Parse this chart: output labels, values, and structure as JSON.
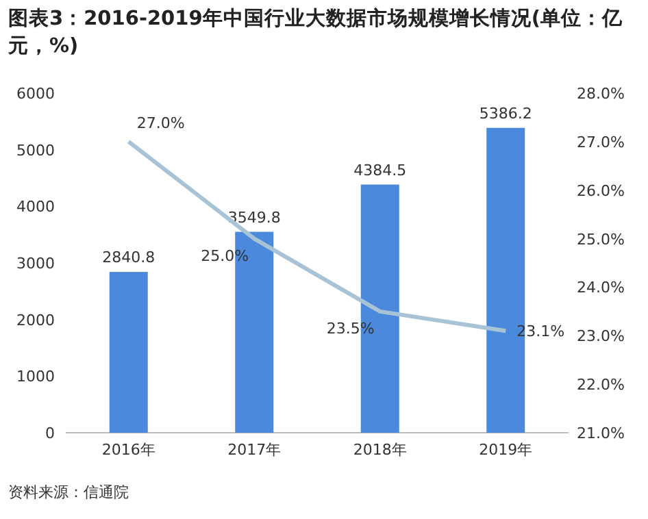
{
  "chart_data": {
    "type": "bar",
    "title": "图表3：2016-2019年中国行业大数据市场规模增长情况(单位：亿元，%)",
    "categories": [
      "2016年",
      "2017年",
      "2018年",
      "2019年"
    ],
    "series": [
      {
        "color": "#4a89dc",
        "values": [
          2840.8,
          3549.8,
          4384.5,
          5386.2
        ],
        "value_labels": [
          "2840.8",
          "3549.8",
          "4384.5",
          "5386.2"
        ]
      },
      {
        "type": "line",
        "axis": "y2",
        "color": "#a9c3d6",
        "values": [
          27.0,
          25.0,
          23.5,
          23.1
        ],
        "value_labels": [
          "27.0%",
          "25.0%",
          "23.5%",
          "23.1%"
        ]
      }
    ],
    "ylim": [
      0,
      6000
    ],
    "yticks": [
      0,
      1000,
      2000,
      3000,
      4000,
      5000,
      6000
    ],
    "y2lim": [
      21,
      28
    ],
    "y2ticks": [
      {
        "value": 21,
        "label": "21.0%"
      },
      {
        "value": 22,
        "label": "22.0%"
      },
      {
        "value": 23,
        "label": "23.0%"
      },
      {
        "value": 24,
        "label": "24.0%"
      },
      {
        "value": 25,
        "label": "25.0%"
      },
      {
        "value": 26,
        "label": "26.0%"
      },
      {
        "value": 27,
        "label": "27.0%"
      },
      {
        "value": 28,
        "label": "28.0%"
      }
    ],
    "grid": false,
    "marker": "none",
    "annotations": [
      "资料来源：信通院"
    ]
  }
}
